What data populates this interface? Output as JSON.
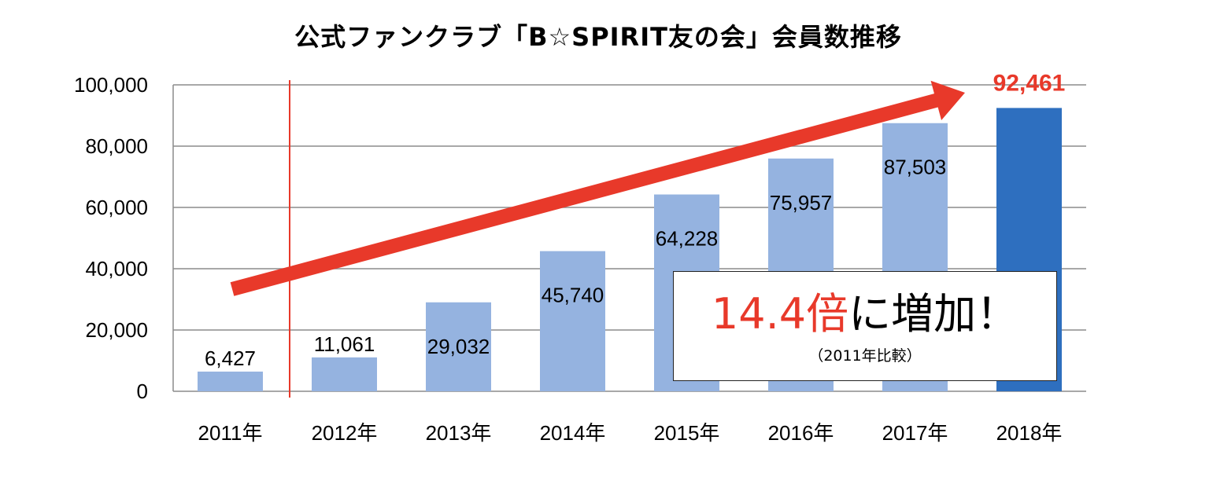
{
  "chart_data": {
    "type": "bar",
    "title": "公式ファンクラブ「B☆SPIRIT友の会」会員数推移",
    "categories": [
      "2011年",
      "2012年",
      "2013年",
      "2014年",
      "2015年",
      "2016年",
      "2017年",
      "2018年"
    ],
    "values": [
      6427,
      11061,
      29032,
      45740,
      64228,
      75957,
      87503,
      92461
    ],
    "value_labels": [
      "6,427",
      "11,061",
      "29,032",
      "45,740",
      "64,228",
      "75,957",
      "87,503",
      "92,461"
    ],
    "ylim": [
      0,
      100000
    ],
    "yticks": [
      0,
      20000,
      40000,
      60000,
      80000,
      100000
    ],
    "ytick_labels": [
      "0",
      "20,000",
      "40,000",
      "60,000",
      "80,000",
      "100,000"
    ],
    "xlabel": "",
    "ylabel": "",
    "grid": true,
    "colors": {
      "bar": "#95b3e0",
      "highlight_bar": "#2e6fbf",
      "accent": "#e8392a",
      "grid": "#8c8c8c"
    },
    "annotation": {
      "multiplier": "14.4倍",
      "text": "に増加！",
      "note": "（2011年比較）"
    }
  }
}
